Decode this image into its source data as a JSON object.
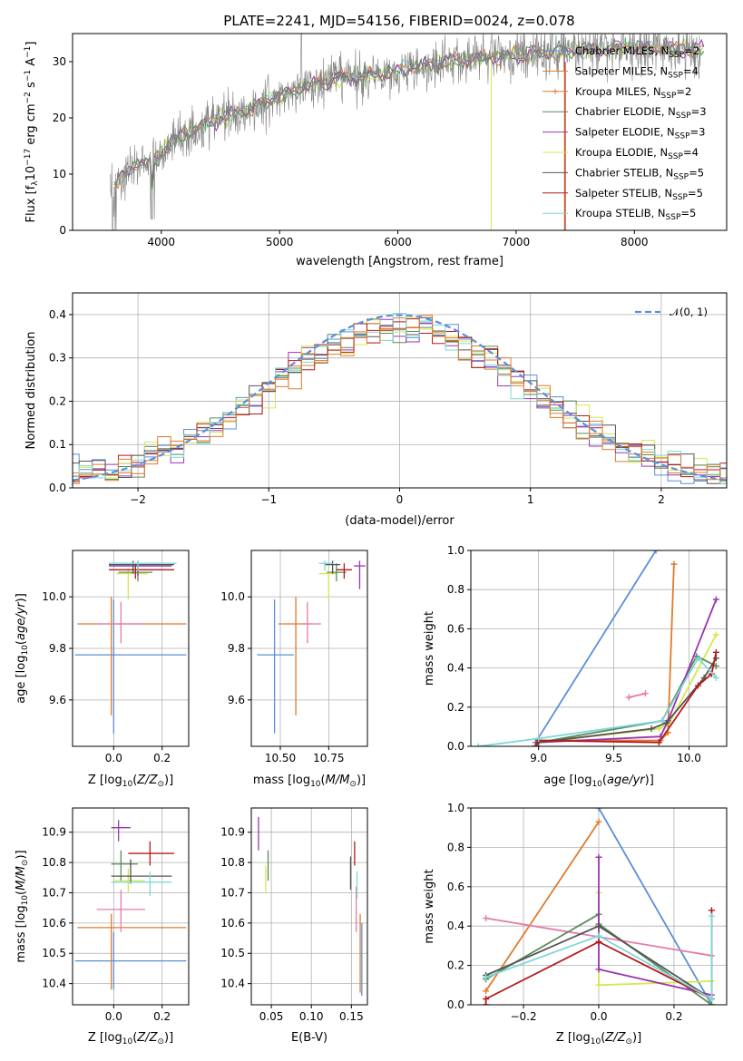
{
  "figure_title": "PLATE=2241, MJD=54156, FIBERID=0024, z=0.078",
  "colors": {
    "Chabrier MILES": "#5b8fd9",
    "Salpeter MILES": "#e07b2c",
    "Kroupa MILES": "#e07b2c",
    "Chabrier ELODIE": "#5a8a5a",
    "Salpeter ELODIE": "#9b36b3",
    "Kroupa ELODIE": "#d4e84f",
    "Chabrier STELIB": "#555555",
    "Salpeter STELIB": "#b51a1a",
    "Kroupa STELIB": "#7fd7d7",
    "pink": "#e879a8",
    "data": "#808080"
  },
  "chart_data": [
    {
      "id": "spectrum",
      "type": "line",
      "xlabel": "wavelength [Angstrom, rest frame]",
      "ylabel": "Flux [f_λ 10^-17 erg cm^-2 s^-1 A^-1]",
      "xlim": [
        3250,
        8780
      ],
      "ylim": [
        0,
        35
      ],
      "xticks": [
        4000,
        5000,
        6000,
        7000,
        8000
      ],
      "yticks": [
        0,
        10,
        20,
        30
      ],
      "grid": false,
      "legend_position": "right",
      "legend": [
        "Chabrier MILES, N_SSP=2",
        "Salpeter MILES, N_SSP=4",
        "Kroupa MILES, N_SSP=2",
        "Chabrier ELODIE, N_SSP=3",
        "Salpeter ELODIE, N_SSP=3",
        "Kroupa ELODIE, N_SSP=4",
        "Chabrier STELIB, N_SSP=5",
        "Salpeter STELIB, N_SSP=5",
        "Kroupa STELIB, N_SSP=5"
      ],
      "continuum": {
        "x": [
          3600,
          3800,
          3950,
          4000,
          4100,
          4300,
          4500,
          4800,
          5000,
          5200,
          5500,
          5800,
          6000,
          6300,
          6600,
          6900,
          7200,
          7400,
          7600,
          7800,
          8000,
          8200,
          8400,
          8600
        ],
        "y": [
          8,
          12,
          12.5,
          13.5,
          16,
          18,
          20,
          22,
          24,
          25.5,
          27,
          27.5,
          28.5,
          29.5,
          30.5,
          31,
          31.5,
          31.8,
          32,
          32.3,
          32.5,
          32.5,
          32.2,
          32
        ]
      }
    },
    {
      "id": "residuals",
      "type": "histogram",
      "xlabel": "(data-model)/error",
      "ylabel": "Normed distribution",
      "xlim": [
        -2.5,
        2.5
      ],
      "ylim": [
        0,
        0.45
      ],
      "xticks": [
        -2,
        -1,
        0,
        1,
        2
      ],
      "yticks": [
        0.0,
        0.1,
        0.2,
        0.3,
        0.4
      ],
      "grid": true,
      "legend_position": "top-right",
      "reference_label": "N(0,1)"
    },
    {
      "id": "age-vs-Z",
      "type": "errorbar",
      "xlabel": "Z [log10(Z/Z☉)]",
      "ylabel": "age  [log10(age/yr)]",
      "xlim": [
        -0.17,
        0.31
      ],
      "ylim": [
        9.42,
        10.18
      ],
      "xticks": [
        0.0,
        0.2
      ],
      "yticks": [
        9.6,
        9.8,
        10.0
      ],
      "grid": true,
      "points": [
        {
          "c": "#5b8fd9",
          "x": 0.0,
          "y": 9.775,
          "xe": [
            -0.16,
            0.3
          ],
          "ye": [
            9.47,
            9.99
          ]
        },
        {
          "c": "#e07b2c",
          "x": -0.01,
          "y": 9.895,
          "xe": [
            -0.15,
            0.3
          ],
          "ye": [
            9.54,
            10.0
          ]
        },
        {
          "c": "#e879a8",
          "x": 0.03,
          "y": 9.895,
          "xe": [
            -0.07,
            0.13
          ],
          "ye": [
            9.82,
            9.98
          ]
        },
        {
          "c": "#d4e84f",
          "x": 0.06,
          "y": 10.09,
          "xe": [
            0.01,
            0.14
          ],
          "ye": [
            9.99,
            10.11
          ]
        },
        {
          "c": "#5a8a5a",
          "x": 0.1,
          "y": 10.095,
          "xe": [
            0.02,
            0.16
          ],
          "ye": [
            10.06,
            10.13
          ]
        },
        {
          "c": "#9b36b3",
          "x": 0.1,
          "y": 10.12,
          "xe": [
            -0.02,
            0.24
          ],
          "ye": [
            10.08,
            10.14
          ]
        },
        {
          "c": "#b51a1a",
          "x": 0.09,
          "y": 10.105,
          "xe": [
            -0.02,
            0.25
          ],
          "ye": [
            10.07,
            10.13
          ]
        },
        {
          "c": "#555555",
          "x": 0.08,
          "y": 10.125,
          "xe": [
            -0.02,
            0.25
          ],
          "ye": [
            10.09,
            10.14
          ]
        },
        {
          "c": "#7fd7d7",
          "x": 0.1,
          "y": 10.13,
          "xe": [
            -0.02,
            0.26
          ],
          "ye": [
            10.1,
            10.14
          ]
        }
      ]
    },
    {
      "id": "age-vs-mass",
      "type": "errorbar",
      "xlabel": "mass [log10(M/M☉)]",
      "ylabel": "",
      "xlim": [
        10.35,
        10.95
      ],
      "ylim": [
        9.42,
        10.18
      ],
      "xticks": [
        10.5,
        10.75
      ],
      "yticks": [
        9.6,
        9.8,
        10.0
      ],
      "grid": true,
      "points": [
        {
          "c": "#5b8fd9",
          "x": 10.47,
          "y": 9.775,
          "xe": [
            10.38,
            10.57
          ],
          "ye": [
            9.47,
            9.99
          ]
        },
        {
          "c": "#e07b2c",
          "x": 10.58,
          "y": 9.895,
          "xe": [
            10.49,
            10.67
          ],
          "ye": [
            9.54,
            10.0
          ]
        },
        {
          "c": "#e879a8",
          "x": 10.64,
          "y": 9.895,
          "xe": [
            10.61,
            10.71
          ],
          "ye": [
            9.82,
            9.98
          ]
        },
        {
          "c": "#d4e84f",
          "x": 10.75,
          "y": 10.09,
          "xe": [
            10.7,
            10.79
          ],
          "ye": [
            9.99,
            10.11
          ]
        },
        {
          "c": "#5a8a5a",
          "x": 10.79,
          "y": 10.095,
          "xe": [
            10.74,
            10.84
          ],
          "ye": [
            10.06,
            10.13
          ]
        },
        {
          "c": "#9b36b3",
          "x": 10.91,
          "y": 10.12,
          "xe": [
            10.88,
            10.94
          ],
          "ye": [
            10.03,
            10.14
          ]
        },
        {
          "c": "#b51a1a",
          "x": 10.83,
          "y": 10.105,
          "xe": [
            10.79,
            10.87
          ],
          "ye": [
            10.07,
            10.13
          ]
        },
        {
          "c": "#555555",
          "x": 10.77,
          "y": 10.125,
          "xe": [
            10.73,
            10.81
          ],
          "ye": [
            10.09,
            10.14
          ]
        },
        {
          "c": "#7fd7d7",
          "x": 10.73,
          "y": 10.13,
          "xe": [
            10.7,
            10.77
          ],
          "ye": [
            10.1,
            10.14
          ]
        }
      ]
    },
    {
      "id": "mass-weight-vs-age",
      "type": "line",
      "xlabel": "age  [log10(age/yr)]",
      "ylabel": "mass weight",
      "xlim": [
        8.55,
        10.25
      ],
      "ylim": [
        0,
        1.0
      ],
      "xticks": [
        9.0,
        9.5,
        10.0
      ],
      "yticks": [
        0.0,
        0.2,
        0.4,
        0.6,
        0.8,
        1.0
      ],
      "grid": true,
      "series": [
        {
          "c": "#5b8fd9",
          "x": [
            8.98,
            9.78
          ],
          "y": [
            0.02,
            1.0
          ]
        },
        {
          "c": "#e07b2c",
          "x": [
            9.0,
            9.81,
            9.86,
            9.9
          ],
          "y": [
            0.03,
            0.03,
            0.07,
            0.93
          ]
        },
        {
          "c": "#e879a8",
          "x": [
            9.6,
            9.71
          ],
          "y": [
            0.25,
            0.27
          ]
        },
        {
          "c": "#d4e84f",
          "x": [
            9.0,
            9.8,
            9.87,
            10.18
          ],
          "y": [
            0.02,
            0.09,
            0.12,
            0.57
          ]
        },
        {
          "c": "#5a8a5a",
          "x": [
            9.0,
            9.82,
            10.05,
            10.18
          ],
          "y": [
            0.02,
            0.13,
            0.46,
            0.41
          ]
        },
        {
          "c": "#9b36b3",
          "x": [
            9.0,
            9.81,
            9.86,
            10.18
          ],
          "y": [
            0.02,
            0.05,
            0.13,
            0.75
          ]
        },
        {
          "c": "#555555",
          "x": [
            8.98,
            9.0,
            9.75,
            9.85,
            10.1,
            10.18
          ],
          "y": [
            0.0,
            0.02,
            0.09,
            0.12,
            0.35,
            0.45
          ]
        },
        {
          "c": "#b51a1a",
          "x": [
            8.98,
            9.0,
            9.8,
            10.06,
            10.15,
            10.18
          ],
          "y": [
            0.0,
            0.03,
            0.02,
            0.31,
            0.37,
            0.48
          ]
        },
        {
          "c": "#7fd7d7",
          "x": [
            8.6,
            9.0,
            9.82,
            10.06,
            10.18
          ],
          "y": [
            0.0,
            0.04,
            0.13,
            0.45,
            0.35
          ]
        }
      ]
    },
    {
      "id": "mass-vs-Z",
      "type": "errorbar",
      "xlabel": "Z [log10(Z/Z☉)]",
      "ylabel": "mass [log10(M/M☉)]",
      "xlim": [
        -0.17,
        0.31
      ],
      "ylim": [
        10.33,
        10.98
      ],
      "xticks": [
        0.0,
        0.2
      ],
      "yticks": [
        10.4,
        10.5,
        10.6,
        10.7,
        10.8,
        10.9
      ],
      "grid": true,
      "points": [
        {
          "c": "#5b8fd9",
          "x": 0.0,
          "y": 10.475,
          "xe": [
            -0.16,
            0.3
          ],
          "ye": [
            10.38,
            10.57
          ]
        },
        {
          "c": "#e07b2c",
          "x": -0.01,
          "y": 10.585,
          "xe": [
            -0.15,
            0.3
          ],
          "ye": [
            10.38,
            10.63
          ]
        },
        {
          "c": "#e879a8",
          "x": 0.03,
          "y": 10.645,
          "xe": [
            -0.07,
            0.13
          ],
          "ye": [
            10.57,
            10.71
          ]
        },
        {
          "c": "#d4e84f",
          "x": 0.06,
          "y": 10.74,
          "xe": [
            0.0,
            0.13
          ],
          "ye": [
            10.7,
            10.78
          ]
        },
        {
          "c": "#5a8a5a",
          "x": 0.03,
          "y": 10.795,
          "xe": [
            -0.01,
            0.1
          ],
          "ye": [
            10.74,
            10.84
          ]
        },
        {
          "c": "#9b36b3",
          "x": 0.02,
          "y": 10.915,
          "xe": [
            -0.01,
            0.07
          ],
          "ye": [
            10.87,
            10.94
          ]
        },
        {
          "c": "#b51a1a",
          "x": 0.15,
          "y": 10.83,
          "xe": [
            0.06,
            0.25
          ],
          "ye": [
            10.79,
            10.87
          ]
        },
        {
          "c": "#555555",
          "x": 0.07,
          "y": 10.755,
          "xe": [
            -0.01,
            0.24
          ],
          "ye": [
            10.73,
            10.81
          ]
        },
        {
          "c": "#7fd7d7",
          "x": 0.15,
          "y": 10.735,
          "xe": [
            -0.01,
            0.24
          ],
          "ye": [
            10.69,
            10.77
          ]
        }
      ]
    },
    {
      "id": "mass-vs-EBV",
      "type": "errorbar",
      "xlabel": "E(B-V)",
      "ylabel": "",
      "xlim": [
        0.025,
        0.17
      ],
      "ylim": [
        10.33,
        10.98
      ],
      "xticks": [
        0.05,
        0.1,
        0.15
      ],
      "yticks": [
        10.4,
        10.5,
        10.6,
        10.7,
        10.8,
        10.9
      ],
      "grid": true,
      "points": [
        {
          "c": "#9b36b3",
          "x": 0.034,
          "y": 10.89,
          "ye": [
            10.84,
            10.95
          ]
        },
        {
          "c": "#d4e84f",
          "x": 0.043,
          "y": 10.75,
          "ye": [
            10.7,
            10.79
          ]
        },
        {
          "c": "#5a8a5a",
          "x": 0.046,
          "y": 10.79,
          "ye": [
            10.74,
            10.84
          ]
        },
        {
          "c": "#555555",
          "x": 0.149,
          "y": 10.76,
          "ye": [
            10.71,
            10.82
          ]
        },
        {
          "c": "#b51a1a",
          "x": 0.154,
          "y": 10.83,
          "ye": [
            10.79,
            10.87
          ]
        },
        {
          "c": "#e879a8",
          "x": 0.156,
          "y": 10.65,
          "ye": [
            10.57,
            10.72
          ]
        },
        {
          "c": "#7fd7d7",
          "x": 0.157,
          "y": 10.73,
          "ye": [
            10.68,
            10.77
          ]
        },
        {
          "c": "#5b8fd9",
          "x": 0.163,
          "y": 10.47,
          "ye": [
            10.36,
            10.6
          ]
        },
        {
          "c": "#e07b2c",
          "x": 0.161,
          "y": 10.5,
          "ye": [
            10.37,
            10.63
          ]
        }
      ]
    },
    {
      "id": "mass-weight-vs-Z",
      "type": "line",
      "xlabel": "Z [log10(Z/Z☉)]",
      "ylabel": "mass weight",
      "xlim": [
        -0.34,
        0.34
      ],
      "ylim": [
        0,
        1.0
      ],
      "xticks": [
        -0.2,
        0.0,
        0.2
      ],
      "yticks": [
        0.0,
        0.2,
        0.4,
        0.6,
        0.8,
        1.0
      ],
      "grid": true,
      "series": [
        {
          "c": "#5b8fd9",
          "x": [
            0.0,
            0.3
          ],
          "y": [
            1.0,
            0.0
          ]
        },
        {
          "c": "#e07b2c",
          "x": [
            -0.3,
            0.0
          ],
          "y": [
            0.07,
            0.93
          ]
        },
        {
          "c": "#e879a8",
          "x": [
            -0.3,
            0.3
          ],
          "y": [
            0.44,
            0.25
          ]
        },
        {
          "c": "#d4e84f",
          "x": [
            0.0,
            0.0,
            0.3,
            0.3
          ],
          "y": [
            0.57,
            0.1,
            0.12,
            0.0
          ]
        },
        {
          "c": "#5a8a5a",
          "x": [
            -0.3,
            0.0,
            0.0,
            0.3
          ],
          "y": [
            0.13,
            0.46,
            0.41,
            0.0
          ]
        },
        {
          "c": "#9b36b3",
          "x": [
            0.0,
            0.0,
            0.3
          ],
          "y": [
            0.75,
            0.18,
            0.05
          ]
        },
        {
          "c": "#555555",
          "x": [
            -0.3,
            0.0,
            0.3
          ],
          "y": [
            0.15,
            0.4,
            0.03
          ]
        },
        {
          "c": "#b51a1a",
          "x": [
            -0.3,
            -0.3,
            0.0,
            0.3,
            0.3
          ],
          "y": [
            0.0,
            0.03,
            0.32,
            0.03,
            0.48
          ]
        },
        {
          "c": "#7fd7d7",
          "x": [
            -0.3,
            0.0,
            0.3,
            0.3
          ],
          "y": [
            0.14,
            0.35,
            0.03,
            0.45
          ]
        }
      ]
    }
  ]
}
